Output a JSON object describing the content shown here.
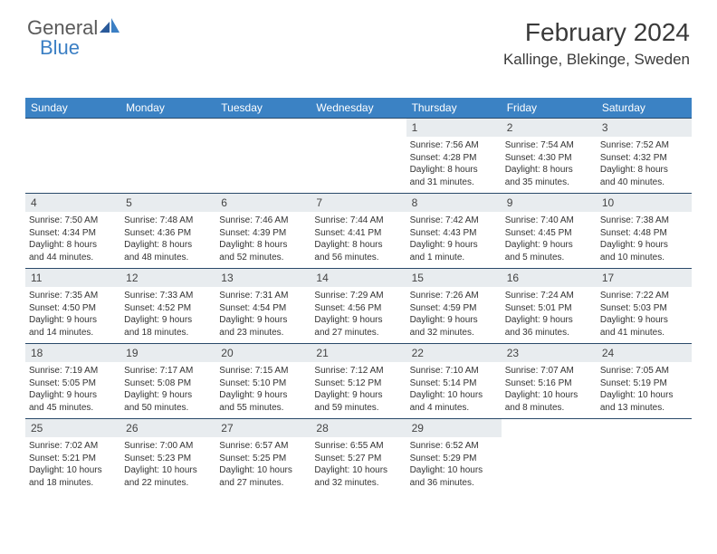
{
  "logo": {
    "part1": "General",
    "part2": "Blue"
  },
  "header": {
    "month_title": "February 2024",
    "location": "Kallinge, Blekinge, Sweden"
  },
  "colors": {
    "header_bar": "#3b82c4",
    "header_text": "#ffffff",
    "daynum_bg": "#e8ecef",
    "row_border": "#2a4a6a",
    "text": "#333333",
    "logo_gray": "#5a5a5a",
    "logo_blue": "#3b7fc4"
  },
  "weekdays": [
    "Sunday",
    "Monday",
    "Tuesday",
    "Wednesday",
    "Thursday",
    "Friday",
    "Saturday"
  ],
  "weeks": [
    [
      null,
      null,
      null,
      null,
      {
        "n": "1",
        "sr": "7:56 AM",
        "ss": "4:28 PM",
        "d1": "8 hours",
        "d2": "and 31 minutes."
      },
      {
        "n": "2",
        "sr": "7:54 AM",
        "ss": "4:30 PM",
        "d1": "8 hours",
        "d2": "and 35 minutes."
      },
      {
        "n": "3",
        "sr": "7:52 AM",
        "ss": "4:32 PM",
        "d1": "8 hours",
        "d2": "and 40 minutes."
      }
    ],
    [
      {
        "n": "4",
        "sr": "7:50 AM",
        "ss": "4:34 PM",
        "d1": "8 hours",
        "d2": "and 44 minutes."
      },
      {
        "n": "5",
        "sr": "7:48 AM",
        "ss": "4:36 PM",
        "d1": "8 hours",
        "d2": "and 48 minutes."
      },
      {
        "n": "6",
        "sr": "7:46 AM",
        "ss": "4:39 PM",
        "d1": "8 hours",
        "d2": "and 52 minutes."
      },
      {
        "n": "7",
        "sr": "7:44 AM",
        "ss": "4:41 PM",
        "d1": "8 hours",
        "d2": "and 56 minutes."
      },
      {
        "n": "8",
        "sr": "7:42 AM",
        "ss": "4:43 PM",
        "d1": "9 hours",
        "d2": "and 1 minute."
      },
      {
        "n": "9",
        "sr": "7:40 AM",
        "ss": "4:45 PM",
        "d1": "9 hours",
        "d2": "and 5 minutes."
      },
      {
        "n": "10",
        "sr": "7:38 AM",
        "ss": "4:48 PM",
        "d1": "9 hours",
        "d2": "and 10 minutes."
      }
    ],
    [
      {
        "n": "11",
        "sr": "7:35 AM",
        "ss": "4:50 PM",
        "d1": "9 hours",
        "d2": "and 14 minutes."
      },
      {
        "n": "12",
        "sr": "7:33 AM",
        "ss": "4:52 PM",
        "d1": "9 hours",
        "d2": "and 18 minutes."
      },
      {
        "n": "13",
        "sr": "7:31 AM",
        "ss": "4:54 PM",
        "d1": "9 hours",
        "d2": "and 23 minutes."
      },
      {
        "n": "14",
        "sr": "7:29 AM",
        "ss": "4:56 PM",
        "d1": "9 hours",
        "d2": "and 27 minutes."
      },
      {
        "n": "15",
        "sr": "7:26 AM",
        "ss": "4:59 PM",
        "d1": "9 hours",
        "d2": "and 32 minutes."
      },
      {
        "n": "16",
        "sr": "7:24 AM",
        "ss": "5:01 PM",
        "d1": "9 hours",
        "d2": "and 36 minutes."
      },
      {
        "n": "17",
        "sr": "7:22 AM",
        "ss": "5:03 PM",
        "d1": "9 hours",
        "d2": "and 41 minutes."
      }
    ],
    [
      {
        "n": "18",
        "sr": "7:19 AM",
        "ss": "5:05 PM",
        "d1": "9 hours",
        "d2": "and 45 minutes."
      },
      {
        "n": "19",
        "sr": "7:17 AM",
        "ss": "5:08 PM",
        "d1": "9 hours",
        "d2": "and 50 minutes."
      },
      {
        "n": "20",
        "sr": "7:15 AM",
        "ss": "5:10 PM",
        "d1": "9 hours",
        "d2": "and 55 minutes."
      },
      {
        "n": "21",
        "sr": "7:12 AM",
        "ss": "5:12 PM",
        "d1": "9 hours",
        "d2": "and 59 minutes."
      },
      {
        "n": "22",
        "sr": "7:10 AM",
        "ss": "5:14 PM",
        "d1": "10 hours",
        "d2": "and 4 minutes."
      },
      {
        "n": "23",
        "sr": "7:07 AM",
        "ss": "5:16 PM",
        "d1": "10 hours",
        "d2": "and 8 minutes."
      },
      {
        "n": "24",
        "sr": "7:05 AM",
        "ss": "5:19 PM",
        "d1": "10 hours",
        "d2": "and 13 minutes."
      }
    ],
    [
      {
        "n": "25",
        "sr": "7:02 AM",
        "ss": "5:21 PM",
        "d1": "10 hours",
        "d2": "and 18 minutes."
      },
      {
        "n": "26",
        "sr": "7:00 AM",
        "ss": "5:23 PM",
        "d1": "10 hours",
        "d2": "and 22 minutes."
      },
      {
        "n": "27",
        "sr": "6:57 AM",
        "ss": "5:25 PM",
        "d1": "10 hours",
        "d2": "and 27 minutes."
      },
      {
        "n": "28",
        "sr": "6:55 AM",
        "ss": "5:27 PM",
        "d1": "10 hours",
        "d2": "and 32 minutes."
      },
      {
        "n": "29",
        "sr": "6:52 AM",
        "ss": "5:29 PM",
        "d1": "10 hours",
        "d2": "and 36 minutes."
      },
      null,
      null
    ]
  ],
  "labels": {
    "sunrise": "Sunrise:",
    "sunset": "Sunset:",
    "daylight": "Daylight:"
  }
}
